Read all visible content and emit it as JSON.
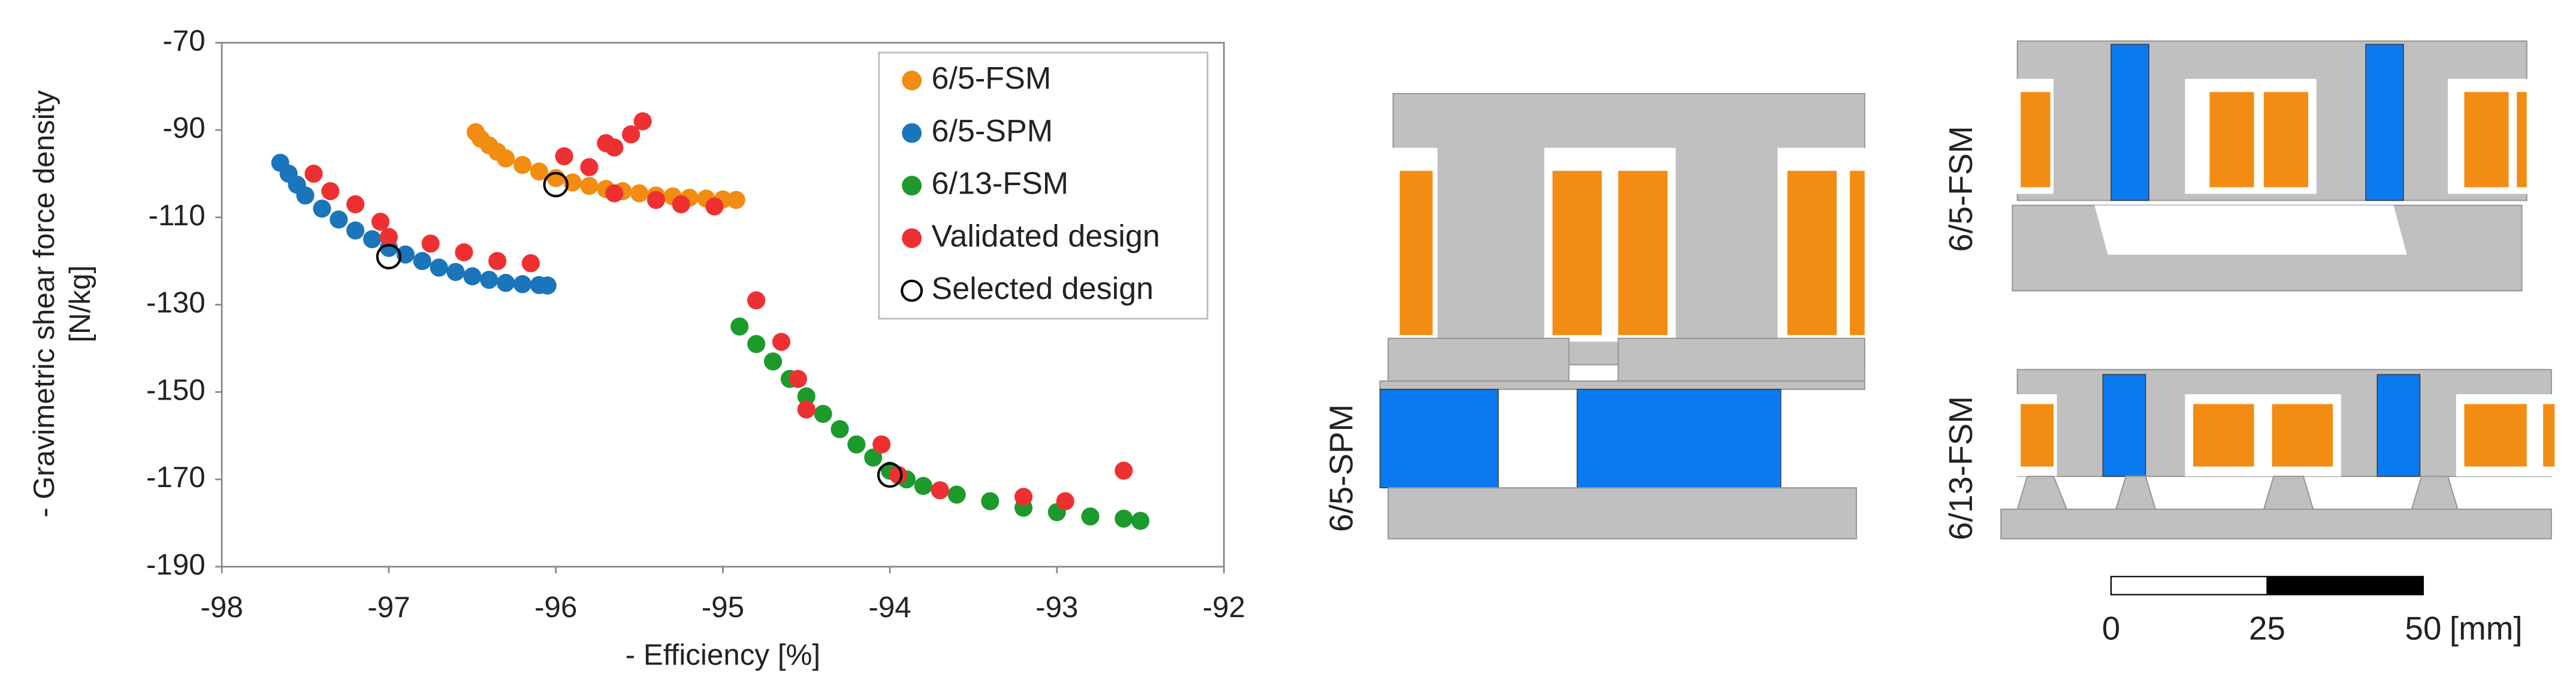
{
  "chart_data": {
    "type": "scatter",
    "xlabel": "- Efficiency [%]",
    "ylabel": [
      "- Gravimetric shear force density",
      "[N/kg]"
    ],
    "xlim": [
      -98,
      -92
    ],
    "xticks": [
      -98,
      -97,
      -96,
      -95,
      -94,
      -93,
      -92
    ],
    "ylim": [
      -190,
      -70
    ],
    "yticks": [
      -190,
      -170,
      -150,
      -130,
      -110,
      -90,
      -70
    ],
    "grid": false,
    "legend": "upper right",
    "series": [
      {
        "name": "6/5-FSM",
        "color": "#f28c12",
        "x": [
          -96.48,
          -96.45,
          -96.4,
          -96.35,
          -96.3,
          -96.2,
          -96.1,
          -96.0,
          -95.9,
          -95.8,
          -95.7,
          -95.6,
          -95.5,
          -95.4,
          -95.3,
          -95.2,
          -95.1,
          -95.0,
          -94.92
        ],
        "values": [
          -90.5,
          -92,
          -93.5,
          -95,
          -96.5,
          -98,
          -99.5,
          -101,
          -102,
          -102.8,
          -103.5,
          -104,
          -104.5,
          -105,
          -105.2,
          -105.5,
          -105.7,
          -105.9,
          -106
        ]
      },
      {
        "name": "6/5-SPM",
        "color": "#1b75bb",
        "x": [
          -97.65,
          -97.6,
          -97.55,
          -97.5,
          -97.4,
          -97.3,
          -97.2,
          -97.1,
          -97.0,
          -96.9,
          -96.8,
          -96.7,
          -96.6,
          -96.5,
          -96.4,
          -96.3,
          -96.2,
          -96.1,
          -96.05
        ],
        "values": [
          -97.5,
          -100,
          -102.5,
          -105,
          -108,
          -110.5,
          -113,
          -115,
          -117,
          -118.5,
          -120,
          -121.5,
          -122.5,
          -123.5,
          -124.3,
          -125,
          -125.3,
          -125.5,
          -125.6
        ]
      },
      {
        "name": "6/13-FSM",
        "color": "#1c9a2c",
        "x": [
          -94.9,
          -94.8,
          -94.7,
          -94.6,
          -94.5,
          -94.4,
          -94.3,
          -94.2,
          -94.1,
          -94.0,
          -93.9,
          -93.8,
          -93.6,
          -93.4,
          -93.2,
          -93.0,
          -92.8,
          -92.6,
          -92.5
        ],
        "values": [
          -135,
          -139,
          -143,
          -147,
          -151,
          -155,
          -158.5,
          -162,
          -165,
          -168,
          -170,
          -171.5,
          -173.5,
          -175,
          -176.5,
          -177.5,
          -178.5,
          -179,
          -179.5
        ]
      },
      {
        "name": "Validated design",
        "color": "#ee3032",
        "x": [
          -97.45,
          -97.35,
          -97.2,
          -97.05,
          -97.0,
          -96.75,
          -96.55,
          -96.35,
          -96.15,
          -95.95,
          -95.8,
          -95.7,
          -95.65,
          -95.55,
          -95.48,
          -95.65,
          -95.4,
          -95.25,
          -95.05,
          -94.8,
          -94.65,
          -94.55,
          -94.5,
          -94.05,
          -93.95,
          -93.7,
          -93.2,
          -92.95,
          -92.6
        ],
        "values": [
          -100,
          -104,
          -107,
          -111,
          -114.5,
          -116,
          -118,
          -120,
          -120.5,
          -96,
          -98.5,
          -93,
          -94,
          -91,
          -88,
          -104.5,
          -106,
          -107,
          -107.5,
          -129,
          -138.5,
          -147,
          -154,
          -162,
          -169,
          -172.5,
          -174,
          -175,
          -168
        ]
      },
      {
        "name": "Selected design",
        "color": "#000000",
        "hollow": true,
        "x": [
          -97,
          -96,
          -94
        ],
        "values": [
          -119,
          -102.5,
          -169
        ]
      }
    ]
  },
  "diagrams": {
    "labels": [
      "6/5-SPM",
      "6/5-FSM",
      "6/13-FSM"
    ]
  },
  "scale_bar": {
    "ticks": [
      0,
      25,
      50
    ],
    "unit": "[mm]"
  }
}
